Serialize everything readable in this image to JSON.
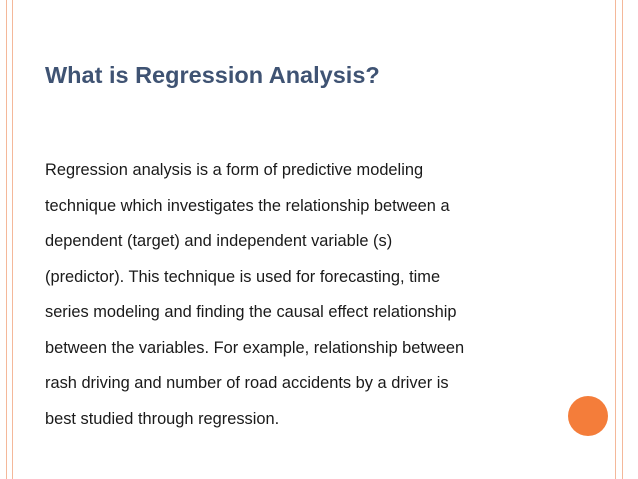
{
  "slide": {
    "title": "What is Regression Analysis?",
    "body_lines": [
      "Regression analysis is a form of predictive modeling",
      "technique which investigates the relationship between a",
      "dependent (target) and independent variable (s)",
      "(predictor). This technique is used for forecasting, time",
      "series modeling and finding the causal effect relationship",
      "between the variables. For example, relationship between",
      "rash driving and number of road accidents by a driver is",
      "best studied through regression."
    ]
  },
  "colors": {
    "title": "#3f5373",
    "frame_lines": "#f4b89a",
    "accent_circle": "#f47d3a"
  }
}
